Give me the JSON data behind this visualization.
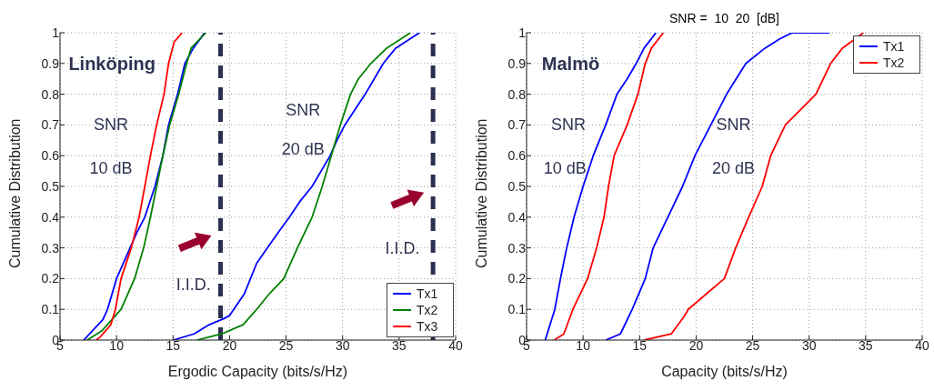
{
  "chart_data": [
    {
      "type": "line",
      "xlabel": "Ergodic Capacity (bits/s/Hz)",
      "ylabel": "Cumulative Distribution",
      "xlim": [
        5,
        40
      ],
      "xticks": [
        5,
        10,
        15,
        20,
        25,
        30,
        35,
        40
      ],
      "ylim": [
        0,
        1
      ],
      "yticks": [
        0,
        0.1,
        0.2,
        0.3,
        0.4,
        0.5,
        0.6,
        0.7,
        0.8,
        0.9,
        1
      ],
      "grid": true,
      "legend": "bottom right",
      "marker": "none",
      "line_style": "solid",
      "series": [
        {
          "name": "Tx1",
          "color": "#0000ff",
          "x": [
            7.1,
            8.8,
            9.2,
            10.0,
            11.2,
            11.8,
            12.5,
            13.4,
            14.1,
            14.6,
            15.4,
            16.05,
            16.8,
            17.8,
            16.4,
            15.0,
            16.85,
            18.2,
            19.5,
            20.0,
            21.3,
            22.4,
            23.35,
            24.3,
            25.3,
            26.2,
            27.3,
            28.1,
            28.9,
            29.5,
            30.2,
            32.0,
            33.6,
            34.7,
            36.8
          ],
          "values": [
            0,
            0.067,
            0.1,
            0.2,
            0.3,
            0.35,
            0.4,
            0.5,
            0.6,
            0.7,
            0.8,
            0.9,
            0.95,
            1,
            null,
            0,
            0.02,
            0.05,
            0.07,
            0.08,
            0.15,
            0.25,
            0.3,
            0.35,
            0.4,
            0.45,
            0.5,
            0.55,
            0.6,
            0.65,
            0.7,
            0.8,
            0.9,
            0.95,
            1
          ]
        },
        {
          "name": "Tx2",
          "color": "#008000",
          "x": [
            7.4,
            8.7,
            10.4,
            11.6,
            12.4,
            13.0,
            13.55,
            14.1,
            14.7,
            15.5,
            16.2,
            16.6,
            17.9,
            17.5,
            17.1,
            19.3,
            21.2,
            22.4,
            23.5,
            24.8,
            26.0,
            27.3,
            28.2,
            29.0,
            29.8,
            30.7,
            31.4,
            32.5,
            33.9,
            36.0
          ],
          "values": [
            0,
            0.03,
            0.1,
            0.2,
            0.3,
            0.4,
            0.5,
            0.6,
            0.7,
            0.8,
            0.9,
            0.95,
            1,
            null,
            0,
            0.02,
            0.05,
            0.1,
            0.15,
            0.2,
            0.3,
            0.4,
            0.5,
            0.6,
            0.7,
            0.8,
            0.85,
            0.9,
            0.95,
            1
          ]
        },
        {
          "name": "Tx3",
          "color": "#ff0000",
          "x": [
            8.2,
            8.55,
            9.5,
            9.9,
            10.4,
            11.3,
            12.0,
            12.5,
            13.0,
            13.55,
            14.2,
            14.6,
            15.1,
            15.8
          ],
          "values": [
            0,
            0.01,
            0.05,
            0.1,
            0.2,
            0.3,
            0.4,
            0.5,
            0.6,
            0.7,
            0.8,
            0.9,
            0.97,
            1
          ]
        }
      ],
      "ref_lines": [
        {
          "axis": "x",
          "value": 19.2,
          "color": "#2b3050",
          "line_style": "dashed"
        },
        {
          "axis": "x",
          "value": 38,
          "color": "#2b3050",
          "line_style": "dashed"
        }
      ],
      "annotations": [
        "Linköping",
        "SNR",
        "10 dB",
        "SNR",
        "20 dB",
        "I.I.D.",
        "I.I.D."
      ]
    },
    {
      "type": "line",
      "title": "SNR =  10  20  [dB]",
      "xlabel": "Capacity (bits/s/Hz)",
      "ylabel": "Cumulative Distribution",
      "xlim": [
        5,
        40
      ],
      "xticks": [
        5,
        10,
        15,
        20,
        25,
        30,
        35,
        40
      ],
      "ylim": [
        0,
        1
      ],
      "yticks": [
        0,
        0.1,
        0.2,
        0.3,
        0.4,
        0.5,
        0.6,
        0.7,
        0.8,
        0.9,
        1
      ],
      "grid": true,
      "legend": "top right",
      "marker": "none",
      "line_style": "solid",
      "series": [
        {
          "name": "Tx1",
          "color": "#0000ff",
          "x": [
            6.65,
            7.5,
            8.0,
            8.55,
            9.2,
            10.0,
            10.9,
            12.0,
            13.0,
            13.9,
            14.7,
            15.4,
            16.45,
            14.0,
            12.0,
            13.3,
            14.35,
            15.5,
            16.2,
            17.5,
            18.8,
            19.9,
            21.3,
            22.7,
            24.4,
            26.1,
            27.4,
            28.5,
            31.8
          ],
          "values": [
            0,
            0.1,
            0.2,
            0.3,
            0.4,
            0.5,
            0.6,
            0.7,
            0.8,
            0.85,
            0.9,
            0.95,
            1,
            null,
            0,
            0.02,
            0.1,
            0.2,
            0.3,
            0.4,
            0.5,
            0.6,
            0.7,
            0.8,
            0.9,
            0.95,
            0.98,
            1,
            1
          ]
        },
        {
          "name": "Tx2",
          "color": "#ff0000",
          "x": [
            7.45,
            8.3,
            9.1,
            10.4,
            11.2,
            11.85,
            12.25,
            12.75,
            13.9,
            14.85,
            15.5,
            16.05,
            17.1,
            16.0,
            15.4,
            17.8,
            19.0,
            19.3,
            20.9,
            22.5,
            23.5,
            24.65,
            25.85,
            26.6,
            27.9,
            30.6,
            31.9,
            32.95,
            34.8
          ],
          "values": [
            0,
            0.02,
            0.1,
            0.2,
            0.3,
            0.4,
            0.5,
            0.6,
            0.7,
            0.8,
            0.9,
            0.95,
            1,
            null,
            0,
            0.02,
            0.08,
            0.1,
            0.15,
            0.2,
            0.3,
            0.4,
            0.5,
            0.6,
            0.7,
            0.8,
            0.9,
            0.95,
            1
          ]
        }
      ],
      "annotations": [
        "Malmö",
        "SNR",
        "10 dB",
        "SNR",
        "20 dB"
      ]
    }
  ]
}
